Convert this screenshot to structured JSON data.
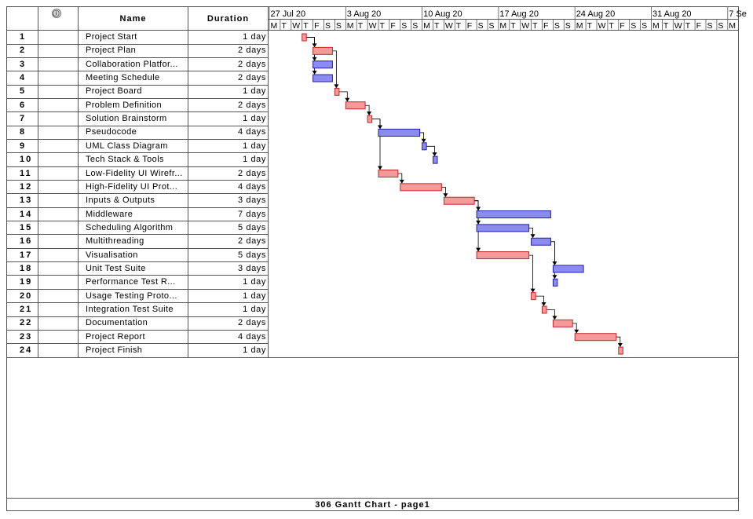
{
  "columns": {
    "id": "",
    "indicator_icon": "info-icon",
    "name": "Name",
    "duration": "Duration"
  },
  "footer": "306 Gantt Chart  -  page1",
  "colors": {
    "critical": "#f59a9a",
    "critical_stroke": "#c0282a",
    "normal": "#8c8cf0",
    "normal_stroke": "#2020a0"
  },
  "chart_data": {
    "type": "gantt",
    "timescale": {
      "weeks": [
        "27 Jul 20",
        "3 Aug 20",
        "10 Aug 20",
        "17 Aug 20",
        "24 Aug 20",
        "31 Aug 20",
        "7 Se"
      ],
      "day_letters": [
        "M",
        "T",
        "W",
        "T",
        "F",
        "S",
        "S"
      ]
    },
    "tasks": [
      {
        "id": "1",
        "name": "Project Start",
        "duration": "1 day",
        "start": 3,
        "days": 1,
        "critical": true,
        "preds": []
      },
      {
        "id": "2",
        "name": "Project Plan",
        "duration": "2 days",
        "start": 4,
        "days": 2,
        "critical": true,
        "preds": [
          "1"
        ]
      },
      {
        "id": "3",
        "name": "Collaboration Platfor...",
        "duration": "2 days",
        "start": 4,
        "days": 2,
        "critical": false,
        "preds": [
          "1"
        ]
      },
      {
        "id": "4",
        "name": "Meeting Schedule",
        "duration": "2 days",
        "start": 4,
        "days": 2,
        "critical": false,
        "preds": [
          "1"
        ]
      },
      {
        "id": "5",
        "name": "Project Board",
        "duration": "1 day",
        "start": 6,
        "days": 1,
        "critical": true,
        "preds": [
          "2"
        ]
      },
      {
        "id": "6",
        "name": "Problem Definition",
        "duration": "2 days",
        "start": 7,
        "days": 2,
        "critical": true,
        "preds": [
          "5"
        ]
      },
      {
        "id": "7",
        "name": "Solution Brainstorm",
        "duration": "1 day",
        "start": 9,
        "days": 1,
        "critical": true,
        "preds": [
          "6"
        ]
      },
      {
        "id": "8",
        "name": "Pseudocode",
        "duration": "4 days",
        "start": 10,
        "days": 4,
        "critical": false,
        "preds": [
          "7"
        ]
      },
      {
        "id": "9",
        "name": "UML Class Diagram",
        "duration": "1 day",
        "start": 14,
        "days": 1,
        "critical": false,
        "preds": [
          "8"
        ]
      },
      {
        "id": "10",
        "name": "Tech Stack & Tools",
        "duration": "1 day",
        "start": 15,
        "days": 1,
        "critical": false,
        "preds": [
          "9"
        ]
      },
      {
        "id": "11",
        "name": "Low-Fidelity UI Wirefr...",
        "duration": "2 days",
        "start": 10,
        "days": 2,
        "critical": true,
        "preds": [
          "7"
        ]
      },
      {
        "id": "12",
        "name": "High-Fidelity UI Prot...",
        "duration": "4 days",
        "start": 12,
        "days": 4,
        "critical": true,
        "preds": [
          "11"
        ]
      },
      {
        "id": "13",
        "name": "Inputs & Outputs",
        "duration": "3 days",
        "start": 16,
        "days": 3,
        "critical": true,
        "preds": [
          "12"
        ]
      },
      {
        "id": "14",
        "name": "Middleware",
        "duration": "7 days",
        "start": 19,
        "days": 7,
        "critical": false,
        "preds": [
          "13"
        ]
      },
      {
        "id": "15",
        "name": "Scheduling Algorithm",
        "duration": "5 days",
        "start": 19,
        "days": 5,
        "critical": false,
        "preds": [
          "13"
        ]
      },
      {
        "id": "16",
        "name": "Multithreading",
        "duration": "2 days",
        "start": 24,
        "days": 2,
        "critical": false,
        "preds": [
          "15"
        ]
      },
      {
        "id": "17",
        "name": "Visualisation",
        "duration": "5 days",
        "start": 19,
        "days": 5,
        "critical": true,
        "preds": [
          "13"
        ]
      },
      {
        "id": "18",
        "name": "Unit Test Suite",
        "duration": "3 days",
        "start": 26,
        "days": 3,
        "critical": false,
        "preds": [
          "16"
        ]
      },
      {
        "id": "19",
        "name": "Performance Test R...",
        "duration": "1 day",
        "start": 26,
        "days": 1,
        "critical": false,
        "preds": [
          "16"
        ]
      },
      {
        "id": "20",
        "name": "Usage Testing Proto...",
        "duration": "1 day",
        "start": 24,
        "days": 1,
        "critical": true,
        "preds": [
          "17"
        ]
      },
      {
        "id": "21",
        "name": "Integration Test Suite",
        "duration": "1 day",
        "start": 25,
        "days": 1,
        "critical": true,
        "preds": [
          "20"
        ]
      },
      {
        "id": "22",
        "name": "Documentation",
        "duration": "2 days",
        "start": 26,
        "days": 2,
        "critical": true,
        "preds": [
          "21"
        ]
      },
      {
        "id": "23",
        "name": "Project Report",
        "duration": "4 days",
        "start": 28,
        "days": 4,
        "critical": true,
        "preds": [
          "22"
        ]
      },
      {
        "id": "24",
        "name": "Project Finish",
        "duration": "1 day",
        "start": 32,
        "days": 1,
        "critical": true,
        "preds": [
          "23"
        ]
      }
    ]
  }
}
